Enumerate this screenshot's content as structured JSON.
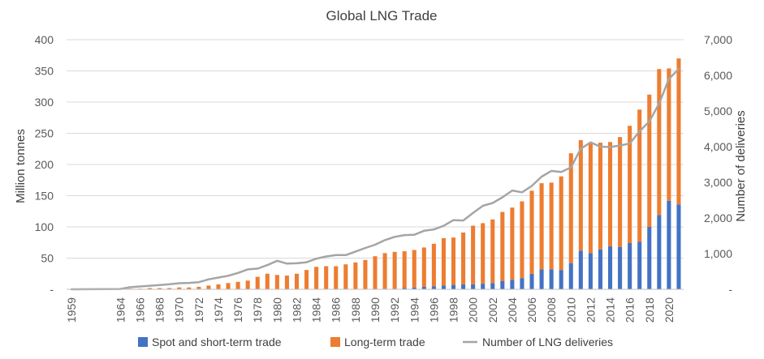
{
  "chart_data": {
    "type": "bar",
    "title": "Global LNG Trade",
    "ylabel": "Million tonnes",
    "y2label": "Number of deliveries",
    "ylim": [
      0,
      400
    ],
    "y2lim": [
      0,
      7000
    ],
    "y_ticks": [
      "-",
      "50",
      "100",
      "150",
      "200",
      "250",
      "300",
      "350",
      "400"
    ],
    "y2_ticks": [
      "-",
      "1,000",
      "2,000",
      "3,000",
      "4,000",
      "5,000",
      "6,000",
      "7,000"
    ],
    "x_tick_labels": [
      "1959",
      "1964",
      "1966",
      "1968",
      "1970",
      "1972",
      "1974",
      "1976",
      "1978",
      "1980",
      "1982",
      "1984",
      "1986",
      "1988",
      "1990",
      "1992",
      "1994",
      "1996",
      "1998",
      "2000",
      "2002",
      "2004",
      "2006",
      "2008",
      "2010",
      "2012",
      "2014",
      "2016",
      "2018",
      "2020"
    ],
    "legend_position": "bottom",
    "categories": [
      1959,
      1964,
      1965,
      1966,
      1967,
      1968,
      1969,
      1970,
      1971,
      1972,
      1973,
      1974,
      1975,
      1976,
      1977,
      1978,
      1979,
      1980,
      1981,
      1982,
      1983,
      1984,
      1985,
      1986,
      1987,
      1988,
      1989,
      1990,
      1991,
      1992,
      1993,
      1994,
      1995,
      1996,
      1997,
      1998,
      1999,
      2000,
      2001,
      2002,
      2003,
      2004,
      2005,
      2006,
      2007,
      2008,
      2009,
      2010,
      2011,
      2012,
      2013,
      2014,
      2015,
      2016,
      2017,
      2018,
      2019,
      2020,
      2021
    ],
    "series": [
      {
        "name": "Spot and short-term trade",
        "kind": "bar",
        "color": "#4472C4",
        "values": [
          0,
          0,
          0,
          0,
          0,
          0,
          0,
          0,
          0,
          0,
          0,
          0,
          0,
          0,
          0,
          0,
          0,
          0,
          0,
          0,
          0,
          0,
          0,
          0,
          0,
          0,
          0,
          0,
          1,
          1,
          2,
          3,
          4,
          5,
          6,
          7,
          8,
          8,
          9,
          10,
          13,
          15,
          18,
          25,
          32,
          32,
          31,
          42,
          62,
          58,
          64,
          69,
          68,
          74,
          76,
          100,
          119,
          142,
          136
        ]
      },
      {
        "name": "Long-term trade",
        "kind": "bar",
        "color": "#ED7D31",
        "values": [
          0,
          0,
          1,
          1,
          2,
          2,
          2,
          3,
          3,
          4,
          6,
          8,
          10,
          12,
          14,
          20,
          25,
          23,
          22,
          25,
          31,
          36,
          37,
          37,
          40,
          43,
          47,
          53,
          57,
          59,
          59,
          60,
          63,
          68,
          76,
          76,
          83,
          94,
          97,
          102,
          111,
          116,
          123,
          133,
          138,
          139,
          150,
          176,
          177,
          177,
          171,
          167,
          176,
          188,
          212,
          212,
          234,
          212,
          234
        ]
      },
      {
        "name": "Number of LNG deliveries",
        "kind": "line",
        "axis": "secondary",
        "color": "#A5A5A5",
        "values": [
          0,
          10,
          60,
          80,
          100,
          120,
          140,
          170,
          180,
          200,
          280,
          330,
          380,
          460,
          560,
          580,
          680,
          800,
          720,
          730,
          760,
          860,
          920,
          960,
          960,
          1060,
          1160,
          1250,
          1380,
          1470,
          1520,
          1530,
          1640,
          1680,
          1780,
          1940,
          1930,
          2140,
          2340,
          2420,
          2580,
          2770,
          2720,
          2900,
          3160,
          3320,
          3290,
          3420,
          3940,
          4120,
          4000,
          3990,
          4030,
          4090,
          4430,
          4710,
          5210,
          5900,
          6180
        ]
      }
    ]
  }
}
